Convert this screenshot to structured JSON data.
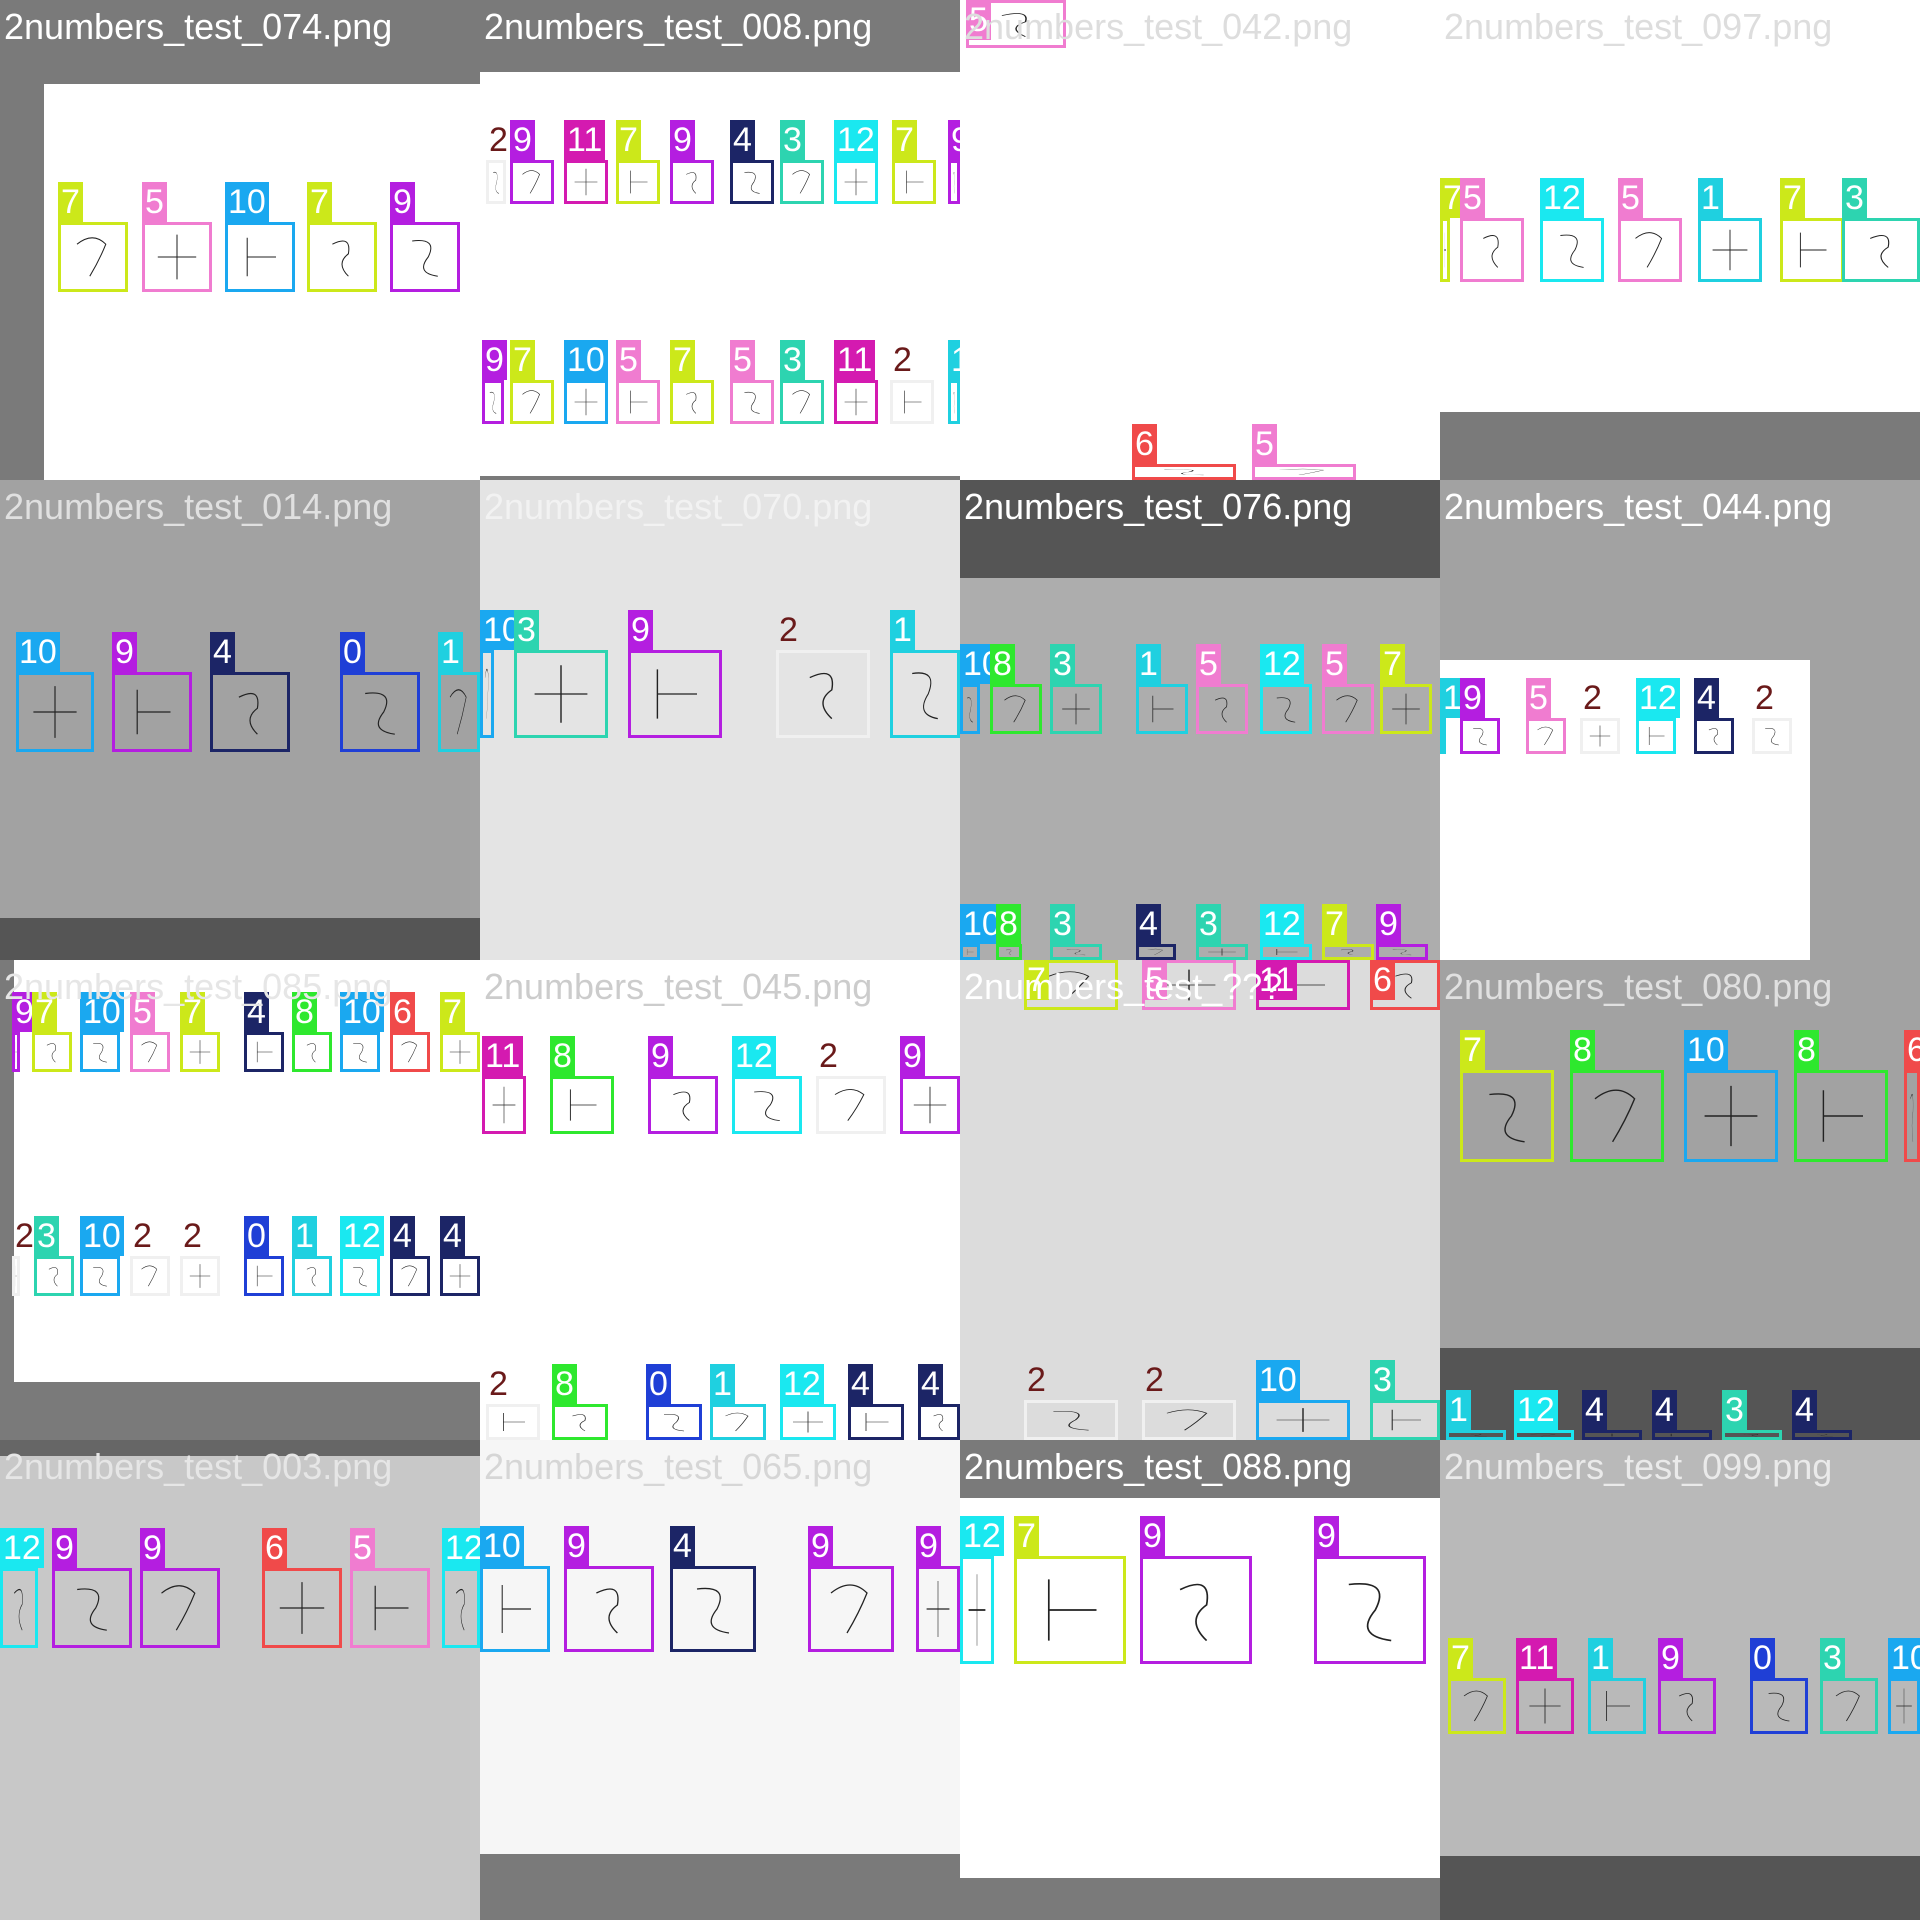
{
  "colors": {
    "0": "#1f3fd6",
    "1": "#1fd0e0",
    "2": "#f0f0f0",
    "3": "#2dd4b0",
    "4": "#1c2566",
    "5": "#f07cd0",
    "6": "#f04a4a",
    "7": "#cce81a",
    "8": "#2ee82e",
    "9": "#b41ee0",
    "10": "#1aa8f0",
    "11": "#d41ab0",
    "12": "#1ae8f0"
  },
  "tiles": [
    {
      "filename": "2numbers_test_074.png",
      "labels": [
        "7",
        "5",
        "10",
        "7",
        "9"
      ]
    },
    {
      "filename": "2numbers_test_008.png",
      "labels": [
        "2",
        "9",
        "11",
        "7",
        "9",
        "4",
        "3",
        "12",
        "7",
        "9",
        "9",
        "7",
        "10",
        "5",
        "7",
        "5",
        "3",
        "11",
        "2",
        "1"
      ]
    },
    {
      "filename": "2numbers_test_042.png",
      "labels": [
        "5",
        "6",
        "5"
      ]
    },
    {
      "filename": "2numbers_test_097.png",
      "labels": [
        "7",
        "5",
        "12",
        "5",
        "1",
        "7",
        "3"
      ]
    },
    {
      "filename": "2numbers_test_014.png",
      "labels": [
        "10",
        "9",
        "4",
        "0",
        "1"
      ]
    },
    {
      "filename": "2numbers_test_070.png",
      "labels": [
        "10",
        "3",
        "9",
        "2",
        "1"
      ]
    },
    {
      "filename": "2numbers_test_076.png",
      "labels": [
        "10",
        "8",
        "3",
        "1",
        "5",
        "12",
        "5",
        "7",
        "10",
        "8",
        "3",
        "4",
        "3",
        "12",
        "7",
        "9"
      ]
    },
    {
      "filename": "2numbers_test_044.png",
      "labels": [
        "1",
        "9",
        "5",
        "2",
        "12",
        "4",
        "2"
      ]
    },
    {
      "filename": "2numbers_test_085.png",
      "labels": [
        "9",
        "7",
        "10",
        "5",
        "7",
        "4",
        "8",
        "10",
        "6",
        "7",
        "2",
        "3",
        "10",
        "2",
        "2",
        "0",
        "1",
        "12",
        "4",
        "4"
      ]
    },
    {
      "filename": "2numbers_test_045.png",
      "labels": [
        "11",
        "8",
        "9",
        "12",
        "2",
        "9",
        "2",
        "8",
        "0",
        "1",
        "12",
        "4",
        "4"
      ]
    },
    {
      "filename": "2numbers_test_???",
      "labels": [
        "7",
        "5",
        "11",
        "6",
        "2",
        "2",
        "10",
        "3"
      ]
    },
    {
      "filename": "2numbers_test_080.png",
      "labels": [
        "7",
        "8",
        "10",
        "8",
        "6",
        "1",
        "12",
        "4",
        "4",
        "3",
        "4"
      ]
    },
    {
      "filename": "2numbers_test_003.png",
      "labels": [
        "12",
        "9",
        "9",
        "6",
        "5",
        "12"
      ]
    },
    {
      "filename": "2numbers_test_065.png",
      "labels": [
        "10",
        "9",
        "4",
        "9",
        "9"
      ]
    },
    {
      "filename": "2numbers_test_088.png",
      "labels": [
        "12",
        "7",
        "9",
        "9"
      ]
    },
    {
      "filename": "2numbers_test_099.png",
      "labels": [
        "7",
        "11",
        "1",
        "9",
        "0",
        "3",
        "10"
      ]
    }
  ]
}
